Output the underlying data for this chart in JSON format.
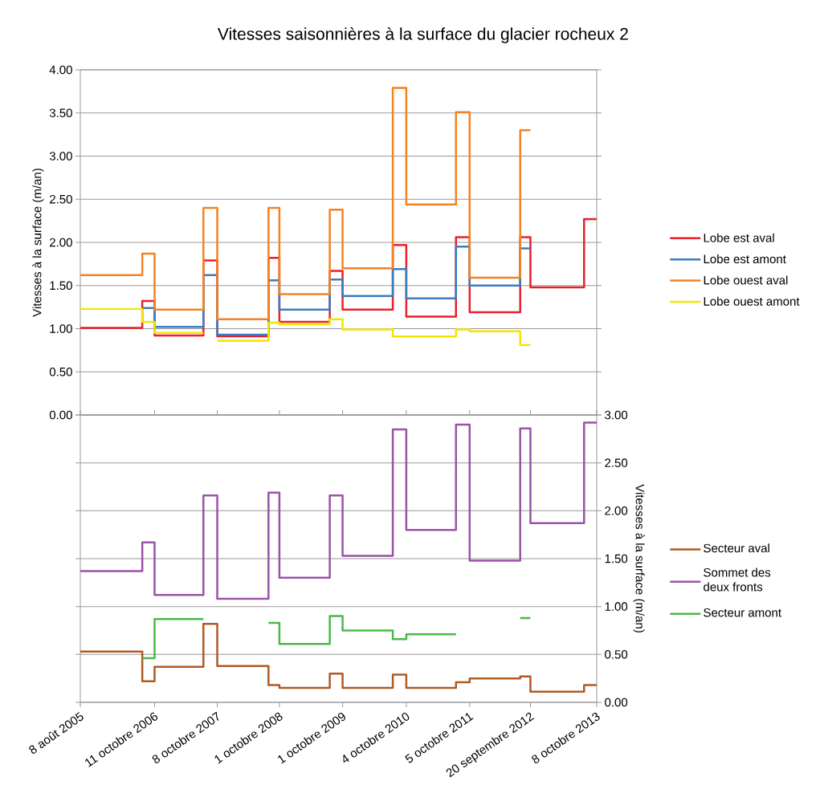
{
  "chart_data": [
    {
      "type": "step",
      "title": "Vitesses saisonnières à la surface du glacier rocheux 2",
      "ylabel": "Vitesses à la surface (m/an)",
      "xlim": [
        "2005-08-08",
        "2013-10-08"
      ],
      "ylim": [
        0,
        4
      ],
      "yticks": [
        {
          "value": 0,
          "label": "0.00"
        },
        {
          "value": 0.5,
          "label": "0.50"
        },
        {
          "value": 1,
          "label": "1.00"
        },
        {
          "value": 1.5,
          "label": "1.50"
        },
        {
          "value": 2,
          "label": "2.00"
        },
        {
          "value": 2.5,
          "label": "2.50"
        },
        {
          "value": 3,
          "label": "3.00"
        },
        {
          "value": 3.5,
          "label": "3.50"
        },
        {
          "value": 4,
          "label": "4.00"
        }
      ],
      "tick_labels": "y",
      "grid": "y",
      "legend": "right",
      "series": [
        {
          "name": "Lobe est aval",
          "color": "#e8202a",
          "x": [
            "2005-08-08",
            "2006-08-01",
            "2006-10-11",
            "2007-07-20",
            "2007-10-08",
            "2008-07-30",
            "2008-10-01",
            "2009-07-19",
            "2009-10-01",
            "2010-07-18",
            "2010-10-04",
            "2011-07-18",
            "2011-10-05",
            "2012-07-23",
            "2012-09-20",
            "2013-07-27",
            "2013-10-08"
          ],
          "values": [
            1.01,
            1.32,
            0.92,
            1.79,
            0.91,
            1.82,
            1.08,
            1.67,
            1.22,
            1.97,
            1.14,
            2.06,
            1.19,
            2.06,
            1.48,
            2.27,
            2.27
          ]
        },
        {
          "name": "Lobe est amont",
          "color": "#3a7dc0",
          "x": [
            "2006-08-01",
            "2006-10-11",
            "2007-07-20",
            "2007-10-08",
            "2008-07-30",
            "2008-10-01",
            "2009-07-19",
            "2009-10-01",
            "2010-07-18",
            "2010-10-04",
            "2011-07-18",
            "2011-10-05",
            "2012-07-23",
            "2012-09-20"
          ],
          "values": [
            1.24,
            1.02,
            1.62,
            0.93,
            1.56,
            1.22,
            1.57,
            1.38,
            1.69,
            1.35,
            1.95,
            1.5,
            1.93,
            1.93
          ]
        },
        {
          "name": "Lobe ouest aval",
          "color": "#f58220",
          "x": [
            "2005-08-08",
            "2006-08-01",
            "2006-10-11",
            "2007-07-20",
            "2007-10-08",
            "2008-07-30",
            "2008-10-01",
            "2009-07-19",
            "2009-10-01",
            "2010-07-18",
            "2010-10-04",
            "2011-07-18",
            "2011-10-05",
            "2012-07-23",
            "2012-09-20"
          ],
          "values": [
            1.62,
            1.87,
            1.22,
            2.4,
            1.11,
            2.4,
            1.4,
            2.38,
            1.7,
            3.79,
            2.44,
            3.51,
            1.59,
            3.3,
            3.3
          ]
        },
        {
          "name": "Lobe ouest amont",
          "color": "#f2e600",
          "x": [
            "2005-08-08",
            "2006-08-01",
            "2006-10-11",
            "2007-07-20",
            "2007-10-08",
            "2008-07-30",
            "2008-10-01",
            "2009-07-19",
            "2009-10-01",
            "2010-07-18",
            "2010-10-04",
            "2011-07-18",
            "2011-10-05",
            "2012-07-23",
            "2012-09-20"
          ],
          "values": [
            1.23,
            1.08,
            0.95,
            null,
            0.86,
            1.07,
            1.05,
            1.11,
            0.99,
            0.91,
            0.91,
            0.99,
            0.97,
            0.81,
            0.81
          ]
        }
      ]
    },
    {
      "type": "step",
      "ylabel": "Vitesses à la surface (m/an)",
      "xlim": [
        "2005-08-08",
        "2013-10-08"
      ],
      "xticks": [
        {
          "value": "2005-08-08",
          "label": "8 août 2005"
        },
        {
          "value": "2006-10-11",
          "label": "11 octobre 2006"
        },
        {
          "value": "2007-10-08",
          "label": "8 octobre 2007"
        },
        {
          "value": "2008-10-01",
          "label": "1 octobre 2008"
        },
        {
          "value": "2009-10-01",
          "label": "1 octobre 2009"
        },
        {
          "value": "2010-10-04",
          "label": "4 octobre 2010"
        },
        {
          "value": "2011-10-05",
          "label": "5 octobre 2011"
        },
        {
          "value": "2012-09-20",
          "label": "20 septembre 2012"
        },
        {
          "value": "2013-10-08",
          "label": "8 octobre 2013"
        }
      ],
      "ylim": [
        0,
        3
      ],
      "yticks": [
        {
          "value": 0,
          "label": "0.00"
        },
        {
          "value": 0.5,
          "label": "0.50"
        },
        {
          "value": 1,
          "label": "1.00"
        },
        {
          "value": 1.5,
          "label": "1.50"
        },
        {
          "value": 2,
          "label": "2.00"
        },
        {
          "value": 2.5,
          "label": "2.50"
        },
        {
          "value": 3,
          "label": "3.00"
        }
      ],
      "grid": "y",
      "legend": "right",
      "series": [
        {
          "name": "Secteur aval",
          "color": "#b05a24",
          "x": [
            "2005-08-08",
            "2006-08-01",
            "2006-10-11",
            "2007-07-20",
            "2007-10-08",
            "2008-07-30",
            "2008-10-01",
            "2009-07-19",
            "2009-10-01",
            "2010-07-18",
            "2010-10-04",
            "2011-07-18",
            "2011-10-05",
            "2012-07-23",
            "2012-09-20",
            "2013-07-27",
            "2013-10-08"
          ],
          "values": [
            0.53,
            0.22,
            0.37,
            0.82,
            0.38,
            0.18,
            0.15,
            0.3,
            0.15,
            0.29,
            0.15,
            0.21,
            0.25,
            0.27,
            0.11,
            0.18,
            0.18
          ]
        },
        {
          "name": "Sommet des deux fronts",
          "color": "#9b52a8",
          "x": [
            "2005-08-08",
            "2006-08-01",
            "2006-10-11",
            "2007-07-20",
            "2007-10-08",
            "2008-07-30",
            "2008-10-01",
            "2009-07-19",
            "2009-10-01",
            "2010-07-18",
            "2010-10-04",
            "2011-07-18",
            "2011-10-05",
            "2012-07-23",
            "2012-09-20",
            "2013-07-27",
            "2013-10-08"
          ],
          "values": [
            1.37,
            1.67,
            1.12,
            2.16,
            1.08,
            2.19,
            1.3,
            2.16,
            1.53,
            2.85,
            1.8,
            2.9,
            1.48,
            2.86,
            1.87,
            2.92,
            2.92
          ]
        },
        {
          "name": "Secteur amont",
          "color": "#4cb848",
          "x": [
            "2006-08-01",
            "2006-10-11",
            "2007-07-20",
            "2007-10-08",
            "2008-07-30",
            "2008-10-01",
            "2009-07-19",
            "2009-10-01",
            "2010-07-18",
            "2010-10-04",
            "2011-07-18",
            "2011-10-05",
            "2012-07-23",
            "2012-09-20"
          ],
          "values": [
            0.46,
            0.87,
            null,
            null,
            0.83,
            0.61,
            0.9,
            0.75,
            0.66,
            0.71,
            null,
            null,
            0.88,
            0.88
          ]
        }
      ]
    }
  ]
}
